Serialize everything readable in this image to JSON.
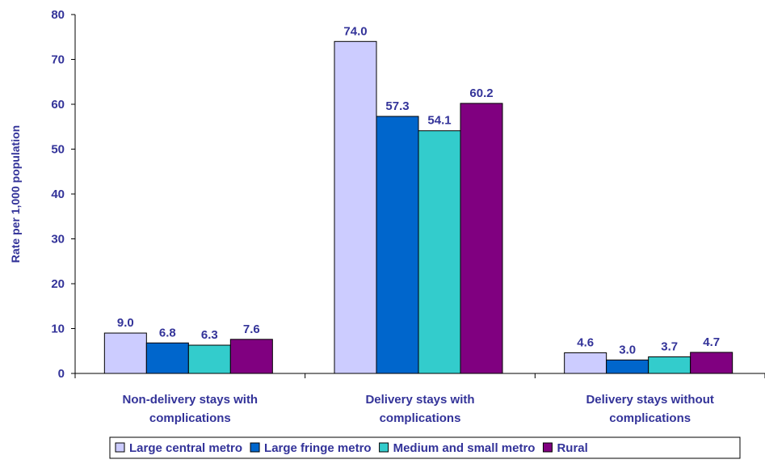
{
  "chart_data": {
    "type": "bar",
    "title": "",
    "xlabel": "",
    "ylabel": "Rate per 1,000 population",
    "ylim": [
      0,
      80
    ],
    "yticks": [
      0,
      10,
      20,
      30,
      40,
      50,
      60,
      70,
      80
    ],
    "grid": false,
    "legend_position": "bottom",
    "categories": [
      [
        "Non-delivery stays with",
        "complications"
      ],
      [
        "Delivery stays with",
        "complications"
      ],
      [
        "Delivery stays without",
        "complications"
      ]
    ],
    "series": [
      {
        "name": "Large central metro",
        "color": "#CCCCFF",
        "values": [
          9.0,
          74.0,
          4.6
        ],
        "labels": [
          "9.0",
          "74.0",
          "4.6"
        ]
      },
      {
        "name": "Large fringe metro",
        "color": "#0066CC",
        "values": [
          6.8,
          57.3,
          3.0
        ],
        "labels": [
          "6.8",
          "57.3",
          "3.0"
        ]
      },
      {
        "name": "Medium and small metro",
        "color": "#33CCCC",
        "values": [
          6.3,
          54.1,
          3.7
        ],
        "labels": [
          "6.3",
          "54.1",
          "3.7"
        ]
      },
      {
        "name": "Rural",
        "color": "#800080",
        "values": [
          7.6,
          60.2,
          4.7
        ],
        "labels": [
          "7.6",
          "60.2",
          "4.7"
        ]
      }
    ],
    "text_color": "#333399"
  }
}
